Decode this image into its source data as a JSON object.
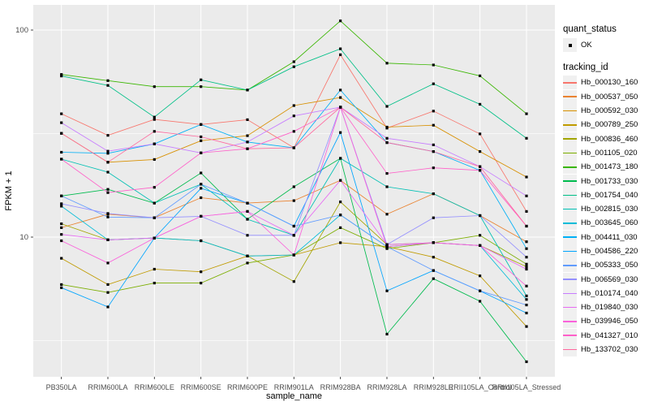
{
  "figure": {
    "background": "#FFFFFF",
    "panel_background": "#EBEBEB",
    "grid_color": "#FFFFFF",
    "axis_text_color": "#4D4D4D",
    "title_text_color": "#000000",
    "point_color": "#000000",
    "legend_key_fill": "#F0F0F0"
  },
  "legend": {
    "quant_status_title": "quant_status",
    "quant_status_items": [
      {
        "label": "OK",
        "marker": "black-point"
      }
    ],
    "tracking_title": "tracking_id"
  },
  "chart_data": {
    "type": "line",
    "title": "",
    "xlabel": "sample_name",
    "ylabel": "FPKM + 1",
    "y_scale": "log10",
    "y_ticks": [
      100,
      10
    ],
    "y_minor_ticks": [
      31.6,
      3.16
    ],
    "ylim": [
      2.1,
      132
    ],
    "grid": true,
    "legend_position": "right",
    "point_marker": "small-black-square",
    "categories": [
      "PB350LA",
      "RRIM600LA",
      "RRIM600LE",
      "RRIM600SE",
      "RRIM600PE",
      "RRIM901LA",
      "RRIM928BA",
      "RRIM928LA",
      "RRIM928LE",
      "RRII105LA_Control",
      "RRII105LA_Stressed"
    ],
    "series": [
      {
        "name": "Hb_000130_160",
        "color": "#F8766D",
        "values": [
          39.4,
          31.0,
          37.0,
          35.0,
          36.9,
          27.0,
          76.0,
          33.6,
          40.6,
          31.5,
          13.3
        ]
      },
      {
        "name": "Hb_000537_050",
        "color": "#EA8331",
        "values": [
          11.1,
          12.9,
          12.4,
          15.5,
          14.6,
          15.0,
          18.8,
          12.9,
          16.2,
          12.7,
          9.5
        ]
      },
      {
        "name": "Hb_000592_030",
        "color": "#D89000",
        "values": [
          31.7,
          23.0,
          23.7,
          29.2,
          30.9,
          43.2,
          47.2,
          34.0,
          34.7,
          25.9,
          19.5
        ]
      },
      {
        "name": "Hb_000789_250",
        "color": "#C09B00",
        "values": [
          7.9,
          5.9,
          7.0,
          6.8,
          8.1,
          8.2,
          9.4,
          9.0,
          8.0,
          6.5,
          3.7
        ]
      },
      {
        "name": "Hb_000836_460",
        "color": "#A3A500",
        "values": [
          11.6,
          9.7,
          9.9,
          9.6,
          8.1,
          6.1,
          14.8,
          9.2,
          9.4,
          9.1,
          7.2
        ]
      },
      {
        "name": "Hb_001105_020",
        "color": "#7CAE00",
        "values": [
          5.9,
          5.4,
          6.0,
          6.0,
          7.5,
          8.2,
          11.1,
          8.8,
          9.4,
          10.2,
          7.4
        ]
      },
      {
        "name": "Hb_001473_180",
        "color": "#39B600",
        "values": [
          61.0,
          57.0,
          53.3,
          53.3,
          51.3,
          70.3,
          110.7,
          69.2,
          67.8,
          60.1,
          39.4
        ]
      },
      {
        "name": "Hb_001733_030",
        "color": "#00BB4E",
        "values": [
          15.8,
          17.0,
          14.6,
          20.4,
          12.2,
          17.5,
          24.0,
          3.4,
          6.3,
          4.9,
          2.5
        ]
      },
      {
        "name": "Hb_001754_040",
        "color": "#00C087",
        "values": [
          60.0,
          54.0,
          38.0,
          57.5,
          51.3,
          66.5,
          81.2,
          42.8,
          55.0,
          43.8,
          30.0
        ]
      },
      {
        "name": "Hb_002815_030",
        "color": "#00C0B4",
        "values": [
          23.8,
          20.6,
          14.6,
          18.0,
          12.2,
          10.2,
          24.0,
          17.5,
          16.2,
          12.7,
          5.2
        ]
      },
      {
        "name": "Hb_003645_060",
        "color": "#00BCD8",
        "values": [
          14.1,
          9.7,
          9.9,
          9.6,
          8.1,
          8.2,
          12.8,
          9.0,
          9.4,
          9.1,
          5.0
        ]
      },
      {
        "name": "Hb_004411_030",
        "color": "#00B0F6",
        "values": [
          25.7,
          25.4,
          28.2,
          35.0,
          28.8,
          27.0,
          51.3,
          28.6,
          25.9,
          21.0,
          8.8
        ]
      },
      {
        "name": "Hb_004586_220",
        "color": "#00A5FF",
        "values": [
          5.7,
          4.6,
          9.9,
          17.2,
          14.6,
          11.3,
          32.0,
          5.5,
          6.9,
          5.5,
          4.3
        ]
      },
      {
        "name": "Hb_005333_050",
        "color": "#619CFF",
        "values": [
          15.8,
          12.5,
          12.4,
          18.0,
          14.6,
          11.3,
          12.8,
          9.0,
          6.9,
          5.5,
          4.7
        ]
      },
      {
        "name": "Hb_006569_030",
        "color": "#9590FF",
        "values": [
          14.5,
          13.0,
          12.4,
          12.6,
          10.2,
          10.2,
          42.4,
          9.2,
          12.4,
          12.7,
          8.0
        ]
      },
      {
        "name": "Hb_010174_040",
        "color": "#C77CFF",
        "values": [
          35.7,
          26.0,
          28.2,
          25.5,
          28.8,
          38.5,
          42.4,
          30.0,
          27.9,
          21.9,
          15.8
        ]
      },
      {
        "name": "Hb_019840_030",
        "color": "#E76BF3",
        "values": [
          10.3,
          9.7,
          9.9,
          12.6,
          13.3,
          10.2,
          18.8,
          9.2,
          9.4,
          9.1,
          7.0
        ]
      },
      {
        "name": "Hb_039946_050",
        "color": "#FA62DB",
        "values": [
          9.6,
          7.5,
          9.9,
          12.6,
          13.3,
          8.2,
          42.4,
          9.0,
          9.4,
          9.1,
          5.8
        ]
      },
      {
        "name": "Hb_041327_010",
        "color": "#FF61C9",
        "values": [
          23.8,
          16.4,
          17.4,
          25.5,
          26.7,
          32.4,
          42.4,
          20.3,
          21.6,
          21.0,
          11.3
        ]
      },
      {
        "name": "Hb_133702_030",
        "color": "#FF689E",
        "values": [
          31.7,
          23.0,
          32.4,
          30.5,
          26.7,
          27.0,
          42.4,
          28.6,
          25.9,
          21.9,
          11.3
        ]
      }
    ]
  }
}
